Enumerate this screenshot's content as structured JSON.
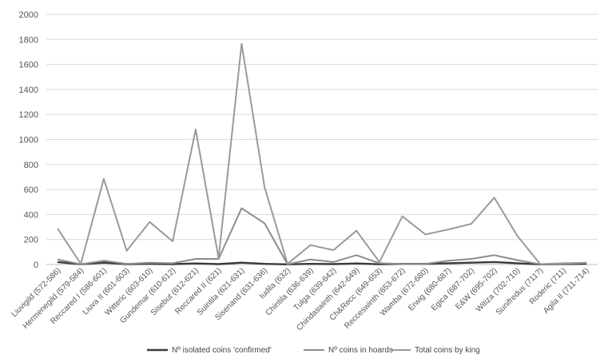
{
  "chart_data": {
    "type": "line",
    "title": "",
    "xlabel": "",
    "ylabel": "",
    "ylim": [
      0,
      2000
    ],
    "yticks": [
      0,
      200,
      400,
      600,
      800,
      1000,
      1200,
      1400,
      1600,
      1800,
      2000
    ],
    "grid": true,
    "legend_position": "bottom",
    "categories": [
      "Liuvigild (572-586)",
      "Hermenegild (579-584)",
      "Reccared I (586-601)",
      "Liuva II (601-603)",
      "Witteric (603-610)",
      "Gundemar (610-612)",
      "Sisebut (612-621)",
      "Reccared II (621)",
      "Suintila (621-631)",
      "Sisenand (631-636)",
      "Iudila (632)",
      "Chintila (636-639)",
      "Tulga (639-642)",
      "Chindaswinth (642-649)",
      "Ch&Recc (649-653)",
      "Recceswinth (653-672)",
      "Wamba (672-680)",
      "Erwig (680-687)",
      "Egica (687-702)",
      "E&W (695-702)",
      "Witiza (702-710)",
      "Sunifredus (711?)",
      "Roderic (711)",
      "Agila II (711-714)"
    ],
    "series": [
      {
        "name": "Nº isolated coins 'confirmed'",
        "color": "#3a3a3a",
        "values": [
          20,
          2,
          15,
          3,
          5,
          3,
          8,
          3,
          15,
          5,
          1,
          5,
          3,
          8,
          2,
          5,
          5,
          10,
          15,
          20,
          10,
          1,
          3,
          5
        ]
      },
      {
        "name": "Nº coins in hoards",
        "color": "#8c8c8c",
        "values": [
          40,
          2,
          30,
          5,
          15,
          10,
          45,
          45,
          450,
          330,
          2,
          40,
          20,
          75,
          10,
          5,
          5,
          30,
          45,
          75,
          35,
          2,
          5,
          15
        ]
      },
      {
        "name": "Total coins by king",
        "color": "#9a9a9a",
        "values": [
          285,
          5,
          685,
          110,
          340,
          185,
          1080,
          50,
          1765,
          620,
          5,
          155,
          115,
          270,
          20,
          385,
          240,
          280,
          325,
          535,
          230,
          3,
          10,
          15
        ]
      }
    ]
  }
}
